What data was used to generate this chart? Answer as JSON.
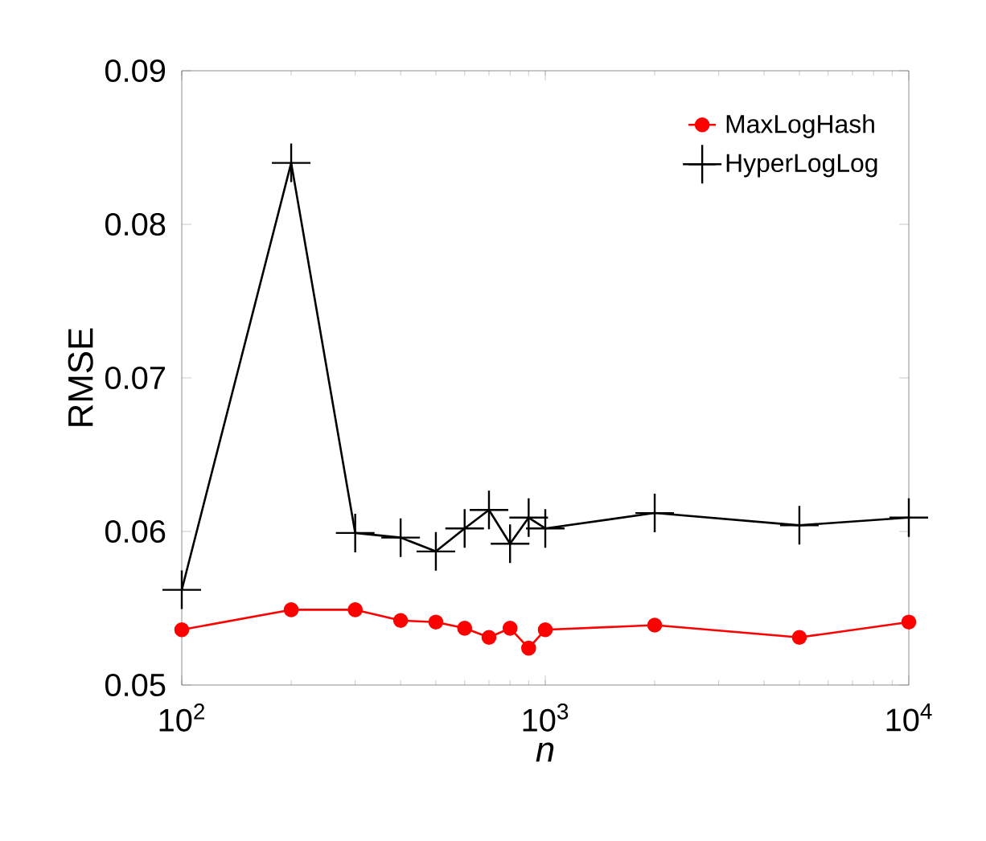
{
  "chart_data": {
    "type": "line",
    "xlabel": "*n*",
    "ylabel": "RMSE",
    "x": [
      100,
      200,
      300,
      400,
      500,
      600,
      700,
      800,
      900,
      1000,
      2000,
      5000,
      10000
    ],
    "series": [
      {
        "name": "MaxLogHash",
        "color": "#ff0000",
        "marker": "circle",
        "values": [
          0.0536,
          0.0549,
          0.0549,
          0.0542,
          0.0541,
          0.0537,
          0.0531,
          0.0537,
          0.0524,
          0.0536,
          0.0539,
          0.0531,
          0.0541
        ]
      },
      {
        "name": "HyperLogLog",
        "color": "#000000",
        "marker": "cross",
        "values": [
          0.0562,
          0.084,
          0.0599,
          0.0596,
          0.0587,
          0.0602,
          0.0614,
          0.0592,
          0.0609,
          0.0602,
          0.0612,
          0.0604,
          0.0609
        ]
      }
    ],
    "log": "x",
    "xlim": [
      100,
      10000
    ],
    "xticks": [
      {
        "value": 100,
        "label": "10$^{2}$"
      },
      {
        "value": 1000,
        "label": "10$^{3}$"
      },
      {
        "value": 10000,
        "label": "10$^{4}$"
      }
    ],
    "ylim": [
      0.05,
      0.09
    ],
    "yticks": [
      0.05,
      0.06,
      0.07,
      0.08,
      0.09
    ],
    "grid": false,
    "legend": "top right",
    "line_style": "solid"
  }
}
